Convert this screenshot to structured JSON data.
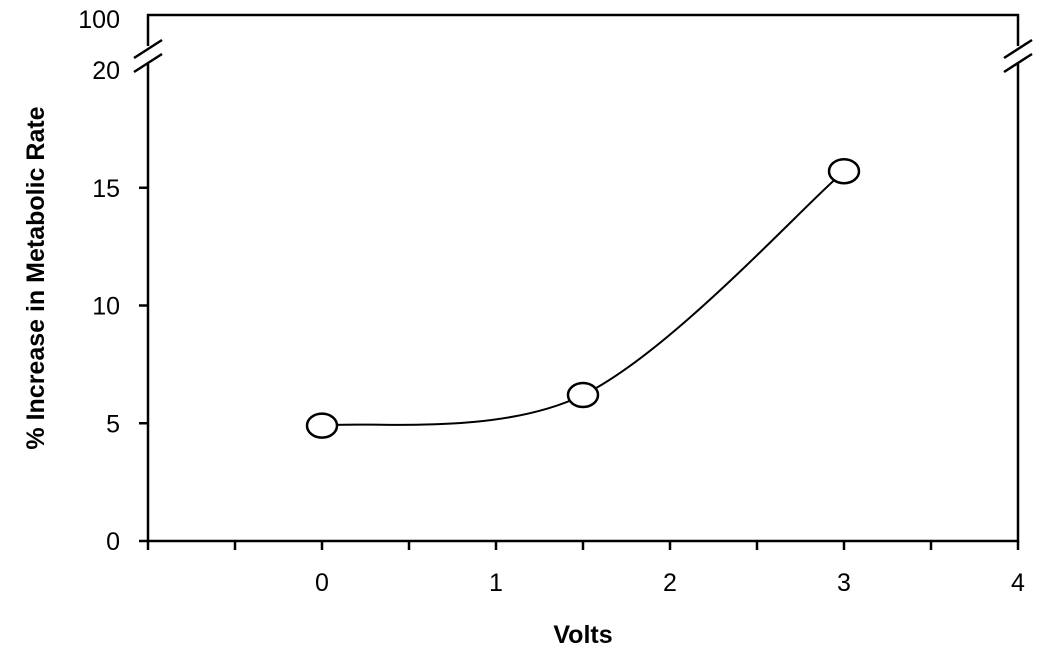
{
  "chart_data": {
    "type": "line",
    "title": "",
    "xlabel": "Volts",
    "ylabel": "% Increase in Metabolic Rate",
    "xlim": [
      -1,
      4
    ],
    "ylim": [
      0,
      20
    ],
    "y_axis_break": {
      "from": 20,
      "to": 100
    },
    "x_tick_labels": [
      "0",
      "1",
      "2",
      "3",
      "4"
    ],
    "y_tick_labels": [
      "0",
      "5",
      "10",
      "15",
      "20",
      "100"
    ],
    "series": [
      {
        "x": [
          0,
          1.5,
          3
        ],
        "y": [
          4.9,
          6.2,
          15.7
        ],
        "marker": "open-circle",
        "smooth": true
      }
    ],
    "grid": false,
    "legend": "none"
  }
}
